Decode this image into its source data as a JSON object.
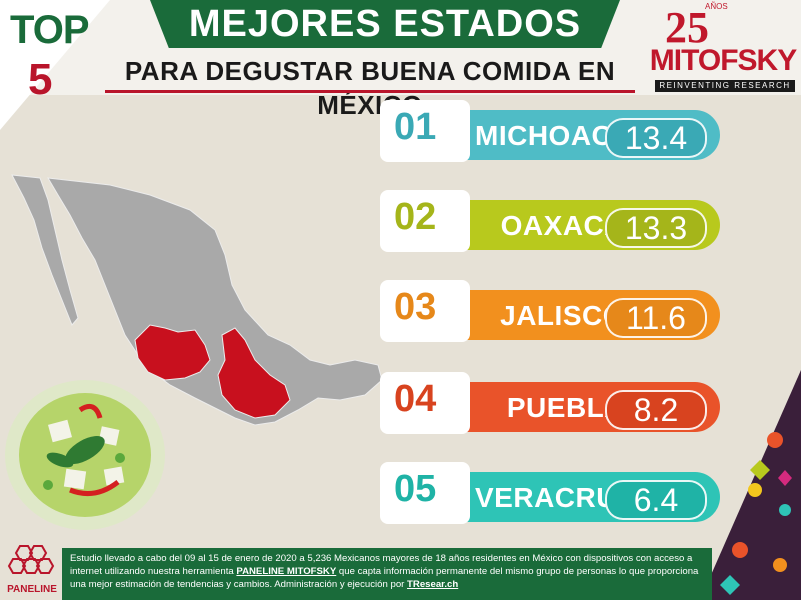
{
  "header": {
    "top_label": "TOP",
    "top_number": "5",
    "title": "MEJORES ESTADOS",
    "subtitle": "PARA DEGUSTAR BUENA COMIDA EN MÉXICO"
  },
  "logo": {
    "years": "25",
    "anos": "AÑOS",
    "name": "MITOFSKY",
    "tagline": "REINVENTING RESEARCH"
  },
  "chart_data": {
    "type": "bar",
    "categories": [
      "MICHOACÁN",
      "OAXACA",
      "JALISCO",
      "PUEBLA",
      "VERACRUZ"
    ],
    "ranks": [
      "01",
      "02",
      "03",
      "04",
      "05"
    ],
    "values": [
      13.4,
      13.3,
      11.6,
      8.2,
      6.4
    ],
    "value_labels": [
      "13.4",
      "13.3",
      "11.6",
      "8.2",
      "6.4"
    ],
    "colors": [
      "#4fbcc6",
      "#b8c91d",
      "#f2901e",
      "#e9532a",
      "#2ec4b6"
    ],
    "num_colors": [
      "#3aa9b5",
      "#a5b51a",
      "#e6881a",
      "#d8431f",
      "#1fb3a6"
    ],
    "title": "MEJORES ESTADOS"
  },
  "footer": {
    "text_part1": "Estudio llevado a cabo del 09 al 15 de enero de 2020 a 5,236 Mexicanos mayores de 18 años residentes en México con dispositivos con acceso a internet utilizando nuestra herramienta ",
    "tool": "PANELINE MITOFSKY",
    "text_part2": " que capta información permanente del mismo grupo de personas lo que proporciona una mejor estimación de tendencias y cambios. Administración y ejecución por ",
    "exec": "TResear.ch"
  },
  "paneline": {
    "label": "PANELINE"
  },
  "colors": {
    "green": "#1a6b3a",
    "red": "#b9152b",
    "map_gray": "#a9a9a9",
    "map_red": "#c8101e"
  }
}
